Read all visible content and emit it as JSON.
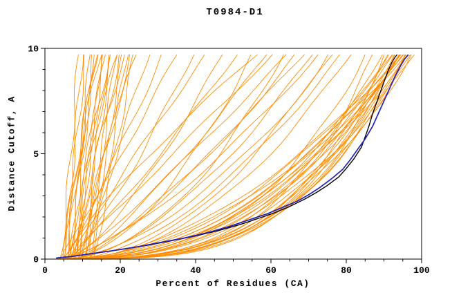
{
  "title": "T0984-D1",
  "chart_data": {
    "type": "line",
    "title": "T0984-D1",
    "xlabel": "Percent of Residues (CA)",
    "ylabel": "Distance Cutoff, A",
    "xlim": [
      0,
      100
    ],
    "ylim": [
      0,
      10
    ],
    "x_ticks": [
      0,
      20,
      40,
      60,
      80,
      100
    ],
    "y_ticks": [
      0,
      5,
      10
    ],
    "x_minor_step": 5,
    "y_minor_step": 1,
    "grid": false,
    "legend": "none",
    "colors": {
      "ensemble": "#FF8C00",
      "highlight_black": "#000000",
      "highlight_blue": "#2222BB",
      "frame": "#000000"
    },
    "series": [
      {
        "name": "highlighted-model-black",
        "color_key": "highlight_black",
        "width": 1.4,
        "points": [
          [
            3,
            0.05
          ],
          [
            8,
            0.15
          ],
          [
            14,
            0.3
          ],
          [
            20,
            0.45
          ],
          [
            27,
            0.65
          ],
          [
            33,
            0.85
          ],
          [
            40,
            1.1
          ],
          [
            46,
            1.35
          ],
          [
            52,
            1.65
          ],
          [
            57,
            1.95
          ],
          [
            61,
            2.2
          ],
          [
            65,
            2.5
          ],
          [
            69,
            2.85
          ],
          [
            72,
            3.15
          ],
          [
            75,
            3.5
          ],
          [
            78,
            3.9
          ],
          [
            80,
            4.3
          ],
          [
            82,
            4.75
          ],
          [
            84,
            5.3
          ],
          [
            85,
            5.8
          ],
          [
            86,
            6.3
          ],
          [
            87,
            6.9
          ],
          [
            88,
            7.4
          ],
          [
            89,
            7.9
          ],
          [
            90,
            8.4
          ],
          [
            91,
            8.9
          ],
          [
            92,
            9.3
          ],
          [
            93,
            9.6
          ],
          [
            93.5,
            9.7
          ]
        ]
      },
      {
        "name": "highlighted-model-blue",
        "color_key": "highlight_blue",
        "width": 1.7,
        "points": [
          [
            3,
            0.05
          ],
          [
            7,
            0.12
          ],
          [
            12,
            0.25
          ],
          [
            18,
            0.4
          ],
          [
            25,
            0.6
          ],
          [
            31,
            0.8
          ],
          [
            37,
            1.0
          ],
          [
            43,
            1.25
          ],
          [
            49,
            1.55
          ],
          [
            54,
            1.85
          ],
          [
            59,
            2.15
          ],
          [
            63,
            2.45
          ],
          [
            67,
            2.75
          ],
          [
            70,
            3.05
          ],
          [
            73,
            3.4
          ],
          [
            76,
            3.8
          ],
          [
            79,
            4.25
          ],
          [
            81,
            4.7
          ],
          [
            83,
            5.2
          ],
          [
            85,
            5.7
          ],
          [
            87,
            6.3
          ],
          [
            88.5,
            6.9
          ],
          [
            90,
            7.5
          ],
          [
            91.5,
            8.1
          ],
          [
            93,
            8.7
          ],
          [
            94.5,
            9.2
          ],
          [
            95.5,
            9.5
          ],
          [
            96.5,
            9.7
          ]
        ]
      }
    ],
    "ensemble": {
      "name": "orange-model-curves",
      "color_key": "ensemble",
      "width": 0.9,
      "y_max_draw": 9.7,
      "curve_model": "x = xs + (xe - xs) * (y / ymax)^p",
      "params": [
        [
          4,
          9,
          0.8
        ],
        [
          5,
          10,
          0.9
        ],
        [
          5,
          11,
          1.0
        ],
        [
          6,
          12,
          0.7
        ],
        [
          6,
          13,
          1.1
        ],
        [
          7,
          13,
          0.9
        ],
        [
          7,
          14,
          1.2
        ],
        [
          8,
          15,
          0.8
        ],
        [
          8,
          16,
          1.0
        ],
        [
          9,
          16,
          1.3
        ],
        [
          9,
          17,
          0.9
        ],
        [
          10,
          18,
          1.1
        ],
        [
          10,
          19,
          0.8
        ],
        [
          11,
          20,
          1.2
        ],
        [
          11,
          21,
          1.0
        ],
        [
          12,
          22,
          0.9
        ],
        [
          12,
          23,
          1.3
        ],
        [
          13,
          24,
          1.0
        ],
        [
          6,
          15,
          1.5
        ],
        [
          7,
          18,
          1.4
        ],
        [
          8,
          20,
          1.6
        ],
        [
          5,
          14,
          1.2
        ],
        [
          9,
          22,
          1.5
        ],
        [
          10,
          25,
          1.4
        ],
        [
          12,
          28,
          1.2
        ],
        [
          4,
          32,
          0.9
        ],
        [
          5,
          36,
          1.0
        ],
        [
          6,
          40,
          0.8
        ],
        [
          7,
          44,
          1.1
        ],
        [
          5,
          48,
          0.7
        ],
        [
          6,
          52,
          0.9
        ],
        [
          7,
          56,
          0.6
        ],
        [
          8,
          60,
          0.8
        ],
        [
          4,
          64,
          0.5
        ],
        [
          5,
          68,
          0.7
        ],
        [
          6,
          72,
          0.6
        ],
        [
          7,
          76,
          0.5
        ],
        [
          8,
          80,
          0.6
        ],
        [
          5,
          58,
          1.2
        ],
        [
          6,
          62,
          1.0
        ],
        [
          7,
          66,
          0.9
        ],
        [
          8,
          70,
          0.8
        ],
        [
          4,
          74,
          0.7
        ],
        [
          5,
          78,
          0.6
        ],
        [
          6,
          82,
          0.5
        ],
        [
          3,
          86,
          0.35
        ],
        [
          4,
          88,
          0.3
        ],
        [
          3,
          90,
          0.32
        ],
        [
          4,
          91,
          0.28
        ],
        [
          5,
          92,
          0.3
        ],
        [
          3,
          93,
          0.27
        ],
        [
          4,
          94,
          0.3
        ],
        [
          5,
          95,
          0.33
        ],
        [
          3,
          96,
          0.29
        ],
        [
          4,
          97,
          0.31
        ],
        [
          5,
          98,
          0.35
        ],
        [
          3,
          92,
          0.4
        ],
        [
          4,
          94,
          0.45
        ],
        [
          5,
          96,
          0.4
        ],
        [
          3,
          97,
          0.5
        ],
        [
          4,
          98,
          0.45
        ],
        [
          5,
          99,
          0.4
        ],
        [
          3,
          95,
          0.38
        ],
        [
          4,
          96,
          0.42
        ],
        [
          5,
          97,
          0.36
        ],
        [
          6,
          98,
          0.33
        ],
        [
          6,
          94,
          0.5
        ],
        [
          7,
          95,
          0.45
        ],
        [
          6,
          96,
          0.55
        ],
        [
          7,
          97,
          0.5
        ]
      ]
    }
  }
}
